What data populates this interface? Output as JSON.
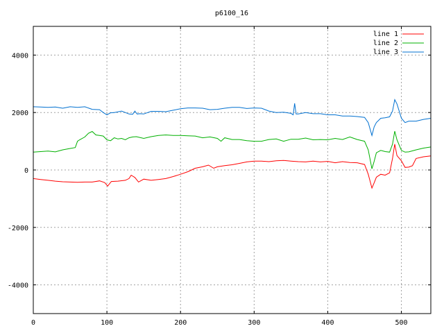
{
  "chart_data": {
    "type": "line",
    "title": "p6100_16",
    "xlabel": "",
    "ylabel": "",
    "xlim": [
      0,
      540
    ],
    "ylim": [
      -5000,
      5000
    ],
    "xticks": [
      0,
      100,
      200,
      300,
      400,
      500
    ],
    "yticks": [
      -4000,
      -2000,
      0,
      2000,
      4000
    ],
    "grid": true,
    "legend": "top-right",
    "series": [
      {
        "name": "line 1",
        "color": "#ff0000",
        "points": [
          [
            0,
            -300
          ],
          [
            10,
            -330
          ],
          [
            20,
            -360
          ],
          [
            30,
            -390
          ],
          [
            40,
            -410
          ],
          [
            50,
            -420
          ],
          [
            60,
            -430
          ],
          [
            70,
            -420
          ],
          [
            80,
            -420
          ],
          [
            90,
            -380
          ],
          [
            97,
            -440
          ],
          [
            101,
            -560
          ],
          [
            106,
            -400
          ],
          [
            115,
            -390
          ],
          [
            125,
            -360
          ],
          [
            130,
            -300
          ],
          [
            133,
            -180
          ],
          [
            138,
            -260
          ],
          [
            143,
            -420
          ],
          [
            150,
            -320
          ],
          [
            160,
            -360
          ],
          [
            170,
            -330
          ],
          [
            180,
            -300
          ],
          [
            190,
            -230
          ],
          [
            200,
            -150
          ],
          [
            210,
            -60
          ],
          [
            220,
            60
          ],
          [
            230,
            110
          ],
          [
            238,
            170
          ],
          [
            245,
            60
          ],
          [
            250,
            110
          ],
          [
            260,
            150
          ],
          [
            270,
            180
          ],
          [
            280,
            230
          ],
          [
            290,
            280
          ],
          [
            300,
            310
          ],
          [
            310,
            310
          ],
          [
            320,
            290
          ],
          [
            330,
            320
          ],
          [
            340,
            330
          ],
          [
            350,
            310
          ],
          [
            360,
            290
          ],
          [
            370,
            280
          ],
          [
            380,
            310
          ],
          [
            390,
            280
          ],
          [
            400,
            300
          ],
          [
            410,
            250
          ],
          [
            420,
            290
          ],
          [
            430,
            260
          ],
          [
            440,
            250
          ],
          [
            450,
            190
          ],
          [
            455,
            -150
          ],
          [
            460,
            -630
          ],
          [
            463,
            -450
          ],
          [
            466,
            -250
          ],
          [
            472,
            -150
          ],
          [
            478,
            -180
          ],
          [
            484,
            -100
          ],
          [
            488,
            400
          ],
          [
            491,
            900
          ],
          [
            494,
            500
          ],
          [
            500,
            320
          ],
          [
            505,
            90
          ],
          [
            510,
            100
          ],
          [
            515,
            150
          ],
          [
            520,
            400
          ],
          [
            530,
            460
          ],
          [
            540,
            490
          ]
        ]
      },
      {
        "name": "line 2",
        "color": "#00b000",
        "points": [
          [
            0,
            620
          ],
          [
            10,
            640
          ],
          [
            20,
            660
          ],
          [
            30,
            630
          ],
          [
            40,
            700
          ],
          [
            50,
            750
          ],
          [
            57,
            780
          ],
          [
            60,
            1000
          ],
          [
            63,
            1050
          ],
          [
            70,
            1150
          ],
          [
            75,
            1280
          ],
          [
            80,
            1340
          ],
          [
            85,
            1220
          ],
          [
            90,
            1200
          ],
          [
            95,
            1180
          ],
          [
            100,
            1050
          ],
          [
            105,
            1020
          ],
          [
            110,
            1120
          ],
          [
            115,
            1080
          ],
          [
            120,
            1100
          ],
          [
            125,
            1050
          ],
          [
            130,
            1120
          ],
          [
            135,
            1150
          ],
          [
            140,
            1160
          ],
          [
            150,
            1100
          ],
          [
            160,
            1160
          ],
          [
            170,
            1200
          ],
          [
            180,
            1220
          ],
          [
            190,
            1200
          ],
          [
            200,
            1200
          ],
          [
            210,
            1190
          ],
          [
            220,
            1180
          ],
          [
            230,
            1120
          ],
          [
            240,
            1150
          ],
          [
            250,
            1100
          ],
          [
            255,
            1000
          ],
          [
            260,
            1120
          ],
          [
            270,
            1060
          ],
          [
            280,
            1060
          ],
          [
            290,
            1020
          ],
          [
            300,
            1000
          ],
          [
            310,
            1000
          ],
          [
            320,
            1060
          ],
          [
            330,
            1080
          ],
          [
            340,
            1000
          ],
          [
            350,
            1070
          ],
          [
            360,
            1070
          ],
          [
            370,
            1110
          ],
          [
            380,
            1050
          ],
          [
            390,
            1060
          ],
          [
            400,
            1050
          ],
          [
            410,
            1100
          ],
          [
            420,
            1060
          ],
          [
            430,
            1150
          ],
          [
            440,
            1060
          ],
          [
            450,
            1000
          ],
          [
            455,
            700
          ],
          [
            460,
            40
          ],
          [
            463,
            300
          ],
          [
            466,
            600
          ],
          [
            472,
            680
          ],
          [
            478,
            640
          ],
          [
            484,
            620
          ],
          [
            488,
            900
          ],
          [
            491,
            1350
          ],
          [
            494,
            1050
          ],
          [
            500,
            680
          ],
          [
            505,
            620
          ],
          [
            510,
            630
          ],
          [
            520,
            700
          ],
          [
            530,
            760
          ],
          [
            540,
            800
          ]
        ]
      },
      {
        "name": "line 3",
        "color": "#0070d0",
        "points": [
          [
            0,
            2200
          ],
          [
            10,
            2190
          ],
          [
            20,
            2180
          ],
          [
            30,
            2190
          ],
          [
            40,
            2150
          ],
          [
            50,
            2200
          ],
          [
            60,
            2180
          ],
          [
            70,
            2200
          ],
          [
            80,
            2110
          ],
          [
            90,
            2100
          ],
          [
            95,
            2000
          ],
          [
            100,
            1920
          ],
          [
            105,
            1990
          ],
          [
            110,
            2000
          ],
          [
            120,
            2050
          ],
          [
            125,
            2000
          ],
          [
            130,
            1950
          ],
          [
            135,
            1940
          ],
          [
            138,
            2050
          ],
          [
            141,
            1950
          ],
          [
            145,
            1960
          ],
          [
            150,
            1950
          ],
          [
            160,
            2040
          ],
          [
            170,
            2040
          ],
          [
            180,
            2030
          ],
          [
            190,
            2080
          ],
          [
            200,
            2130
          ],
          [
            210,
            2160
          ],
          [
            220,
            2160
          ],
          [
            230,
            2150
          ],
          [
            240,
            2100
          ],
          [
            250,
            2110
          ],
          [
            260,
            2150
          ],
          [
            270,
            2180
          ],
          [
            280,
            2180
          ],
          [
            290,
            2140
          ],
          [
            300,
            2160
          ],
          [
            310,
            2150
          ],
          [
            320,
            2050
          ],
          [
            330,
            2000
          ],
          [
            340,
            2010
          ],
          [
            350,
            1970
          ],
          [
            353,
            1920
          ],
          [
            355,
            2320
          ],
          [
            357,
            1950
          ],
          [
            360,
            1950
          ],
          [
            370,
            2000
          ],
          [
            380,
            1960
          ],
          [
            390,
            1960
          ],
          [
            400,
            1920
          ],
          [
            410,
            1920
          ],
          [
            420,
            1880
          ],
          [
            430,
            1880
          ],
          [
            440,
            1860
          ],
          [
            450,
            1830
          ],
          [
            455,
            1650
          ],
          [
            460,
            1200
          ],
          [
            463,
            1500
          ],
          [
            466,
            1650
          ],
          [
            472,
            1800
          ],
          [
            478,
            1820
          ],
          [
            484,
            1850
          ],
          [
            488,
            2050
          ],
          [
            491,
            2450
          ],
          [
            494,
            2300
          ],
          [
            500,
            1800
          ],
          [
            505,
            1650
          ],
          [
            510,
            1700
          ],
          [
            520,
            1700
          ],
          [
            530,
            1760
          ],
          [
            540,
            1800
          ]
        ]
      }
    ]
  }
}
